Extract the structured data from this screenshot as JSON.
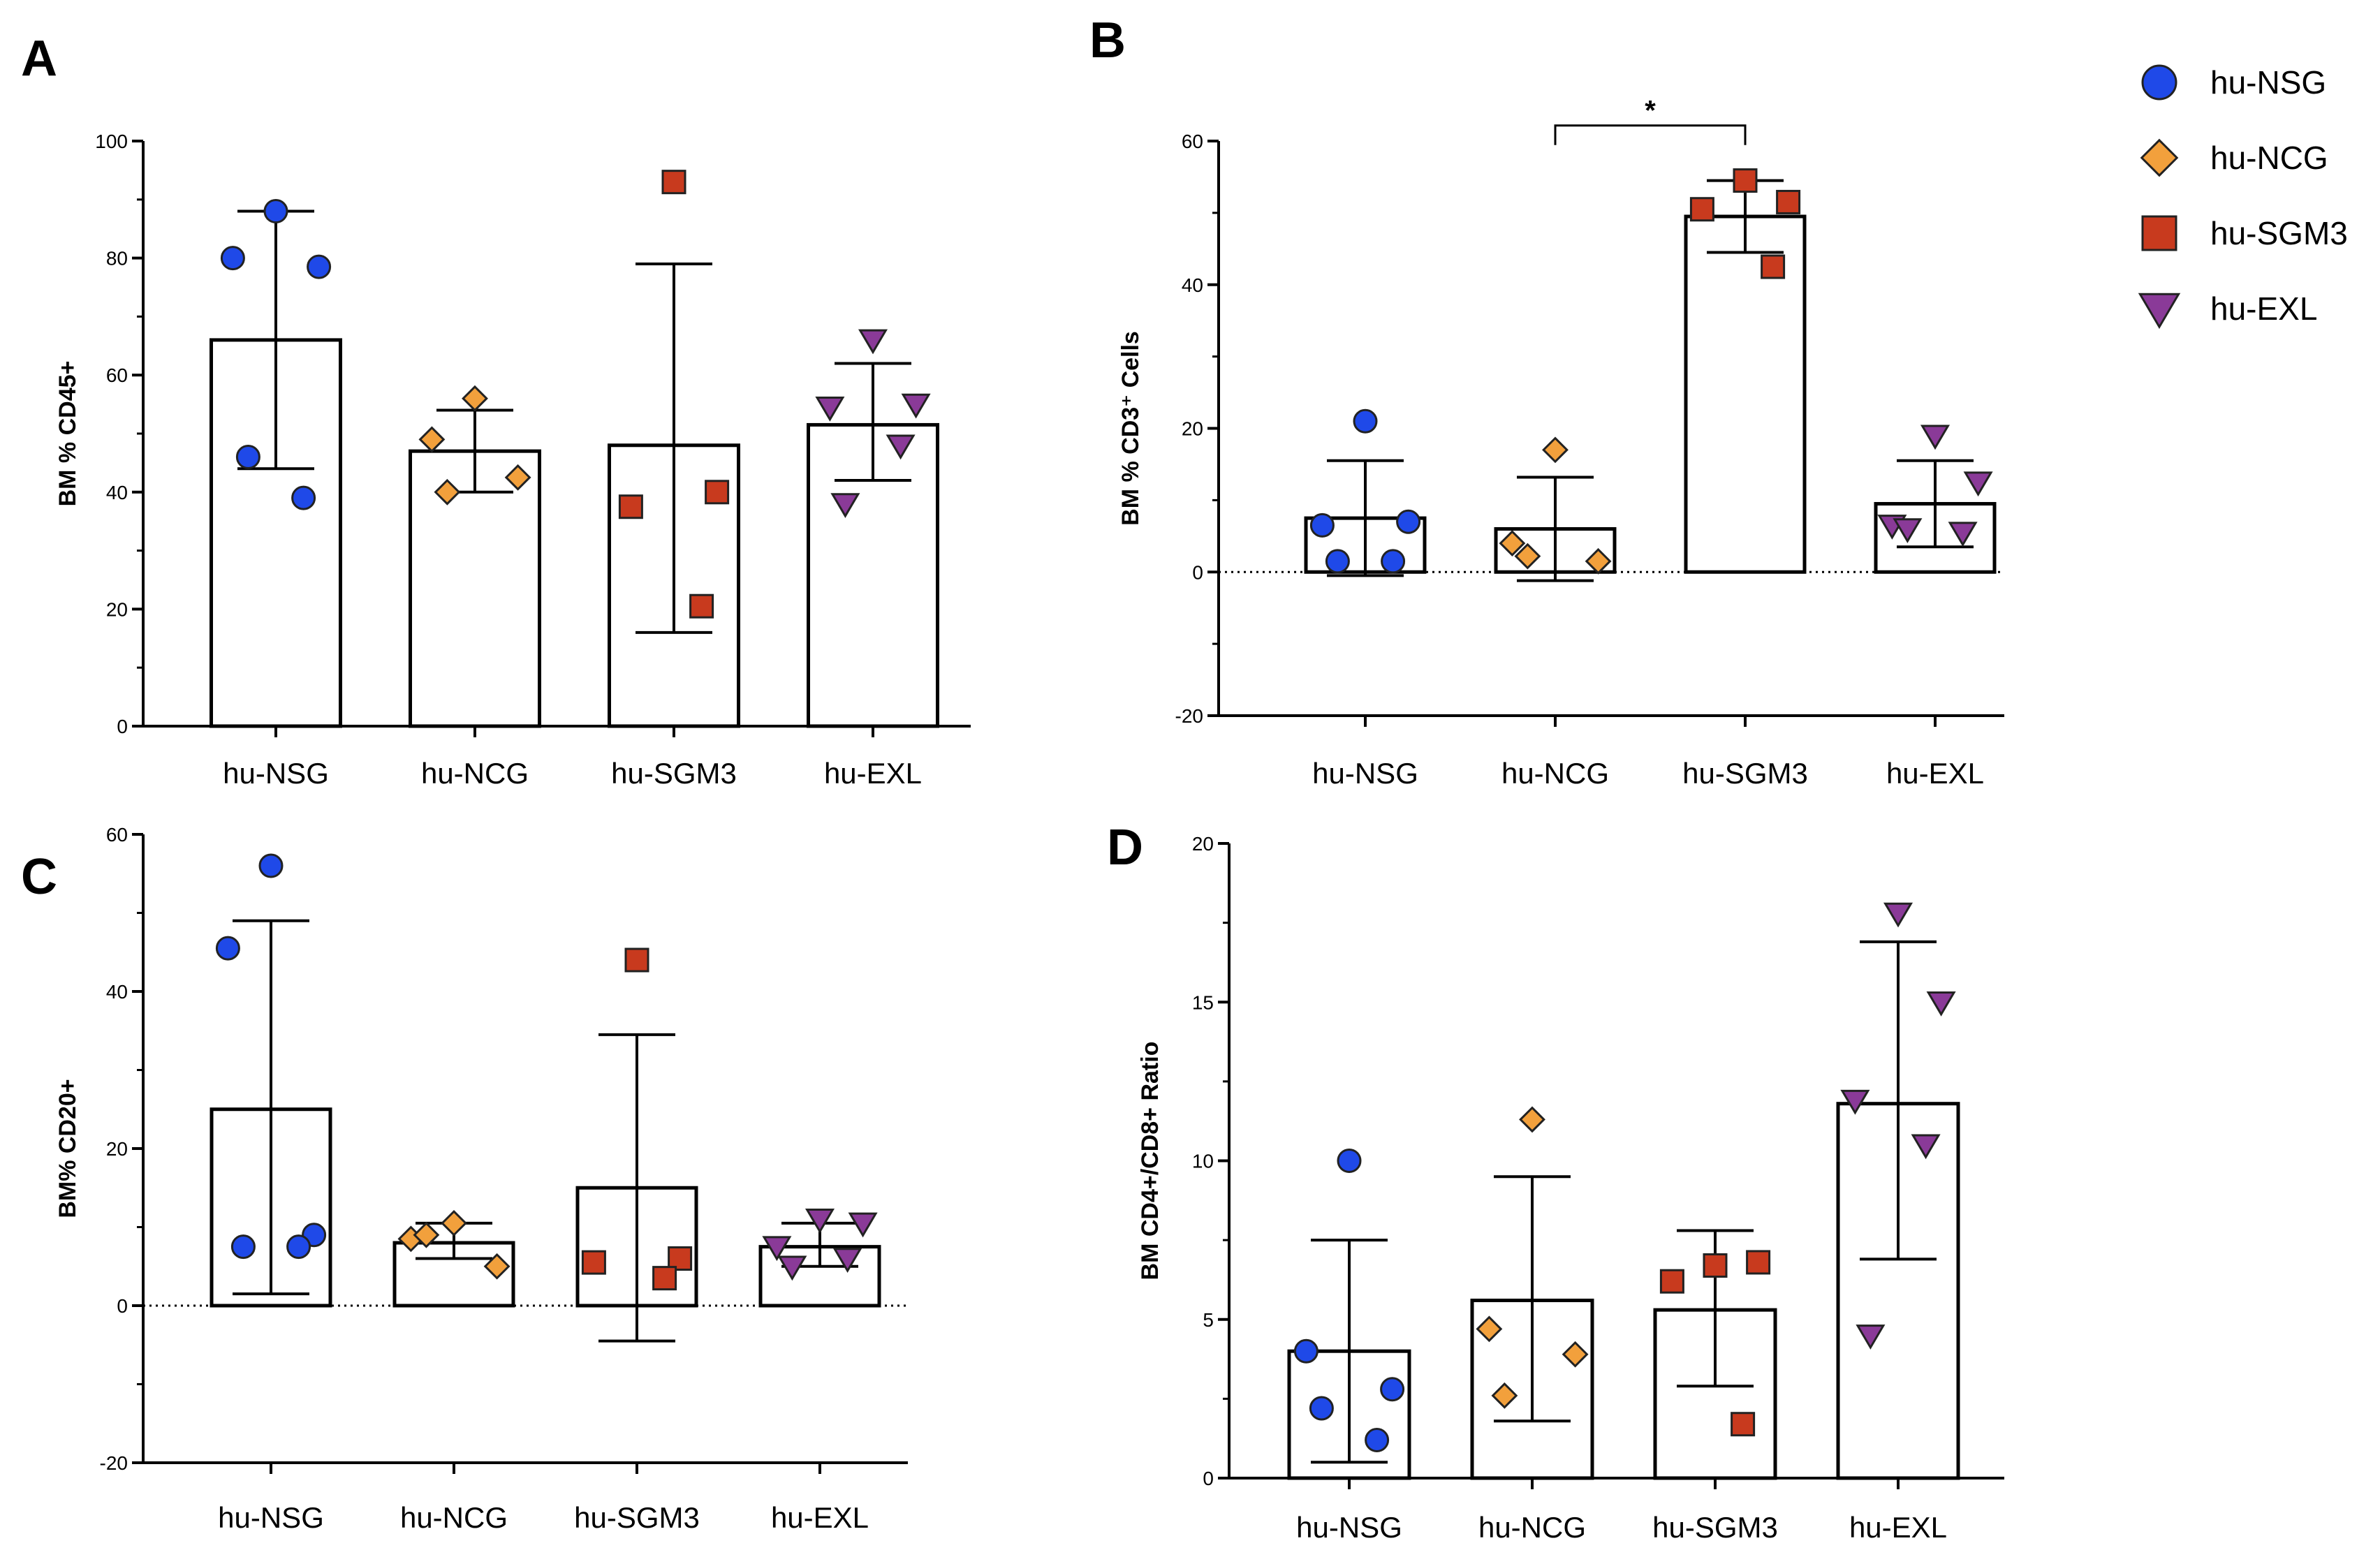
{
  "colors": {
    "hu-NSG": "#1f49e8",
    "hu-NCG": "#f2a03c",
    "hu-SGM3": "#c83a1e",
    "hu-EXL": "#8a3a98"
  },
  "legend": [
    {
      "label": "hu-NSG",
      "marker": "circle"
    },
    {
      "label": "hu-NCG",
      "marker": "diamond"
    },
    {
      "label": "hu-SGM3",
      "marker": "square"
    },
    {
      "label": "hu-EXL",
      "marker": "triangle-down"
    }
  ],
  "chart_data": [
    {
      "panel": "A",
      "type": "bar",
      "ylabel": "BM % CD45+",
      "ylim": [
        0,
        100
      ],
      "yticks": [
        0,
        20,
        40,
        60,
        80,
        100
      ],
      "zero_line": false,
      "categories": [
        "hu-NSG",
        "hu-NCG",
        "hu-SGM3",
        "hu-EXL"
      ],
      "means": [
        66,
        47,
        48,
        51.5
      ],
      "error_low": [
        44,
        40,
        16,
        42
      ],
      "error_high": [
        88,
        54,
        79,
        62
      ],
      "points": [
        [
          88,
          80,
          78.5,
          46,
          39
        ],
        [
          56,
          49,
          42.5,
          40
        ],
        [
          93,
          40,
          37.5,
          20.5
        ],
        [
          66,
          55,
          54.5,
          48,
          38
        ]
      ],
      "significance": null
    },
    {
      "panel": "B",
      "type": "bar",
      "ylabel": "BM % CD3⁺ Cells",
      "ylim": [
        -20,
        60
      ],
      "yticks": [
        -20,
        0,
        20,
        40,
        60
      ],
      "zero_line": true,
      "categories": [
        "hu-NSG",
        "hu-NCG",
        "hu-SGM3",
        "hu-EXL"
      ],
      "means": [
        7.5,
        6,
        49.5,
        9.5
      ],
      "error_low": [
        -0.5,
        -1.2,
        44.5,
        3.5
      ],
      "error_high": [
        15.5,
        13.2,
        54.5,
        15.5
      ],
      "points": [
        [
          21,
          6.5,
          7,
          1.5,
          1.5
        ],
        [
          17,
          4,
          1.5,
          2.2
        ],
        [
          54.5,
          51.5,
          50.5,
          42.5
        ],
        [
          19,
          12.5,
          6.5,
          5.5,
          6
        ]
      ],
      "significance": {
        "from": 1,
        "to": 2,
        "label": "*",
        "y": 61
      }
    },
    {
      "panel": "C",
      "type": "bar",
      "ylabel": "BM% CD20+",
      "ylim": [
        -20,
        60
      ],
      "yticks": [
        -20,
        0,
        20,
        40,
        60
      ],
      "zero_line": true,
      "categories": [
        "hu-NSG",
        "hu-NCG",
        "hu-SGM3",
        "hu-EXL"
      ],
      "means": [
        25,
        8,
        15,
        7.5
      ],
      "error_low": [
        1.5,
        6,
        -4.5,
        5
      ],
      "error_high": [
        49,
        10.5,
        34.5,
        10.5
      ],
      "points": [
        [
          56,
          45.5,
          9,
          7.5,
          7.5
        ],
        [
          10.5,
          8.5,
          5,
          9
        ],
        [
          44,
          6,
          5.5,
          3.5
        ],
        [
          11,
          10.5,
          7.5,
          6,
          5
        ]
      ],
      "significance": null
    },
    {
      "panel": "D",
      "type": "bar",
      "ylabel": "BM CD4+/CD8+ Ratio",
      "ylim": [
        0,
        20
      ],
      "yticks": [
        0,
        5,
        10,
        15,
        20
      ],
      "zero_line": false,
      "categories": [
        "hu-NSG",
        "hu-NCG",
        "hu-SGM3",
        "hu-EXL"
      ],
      "means": [
        4,
        5.6,
        5.3,
        11.8
      ],
      "error_low": [
        0.5,
        1.8,
        2.9,
        6.9
      ],
      "error_high": [
        7.5,
        9.5,
        7.8,
        16.9
      ],
      "points": [
        [
          10,
          4,
          2.8,
          2.2,
          1.2
        ],
        [
          11.3,
          4.7,
          3.9,
          2.6
        ],
        [
          6.7,
          6.8,
          6.2,
          1.7
        ],
        [
          17.8,
          15,
          11.9,
          10.5,
          4.5
        ]
      ],
      "significance": null
    }
  ]
}
